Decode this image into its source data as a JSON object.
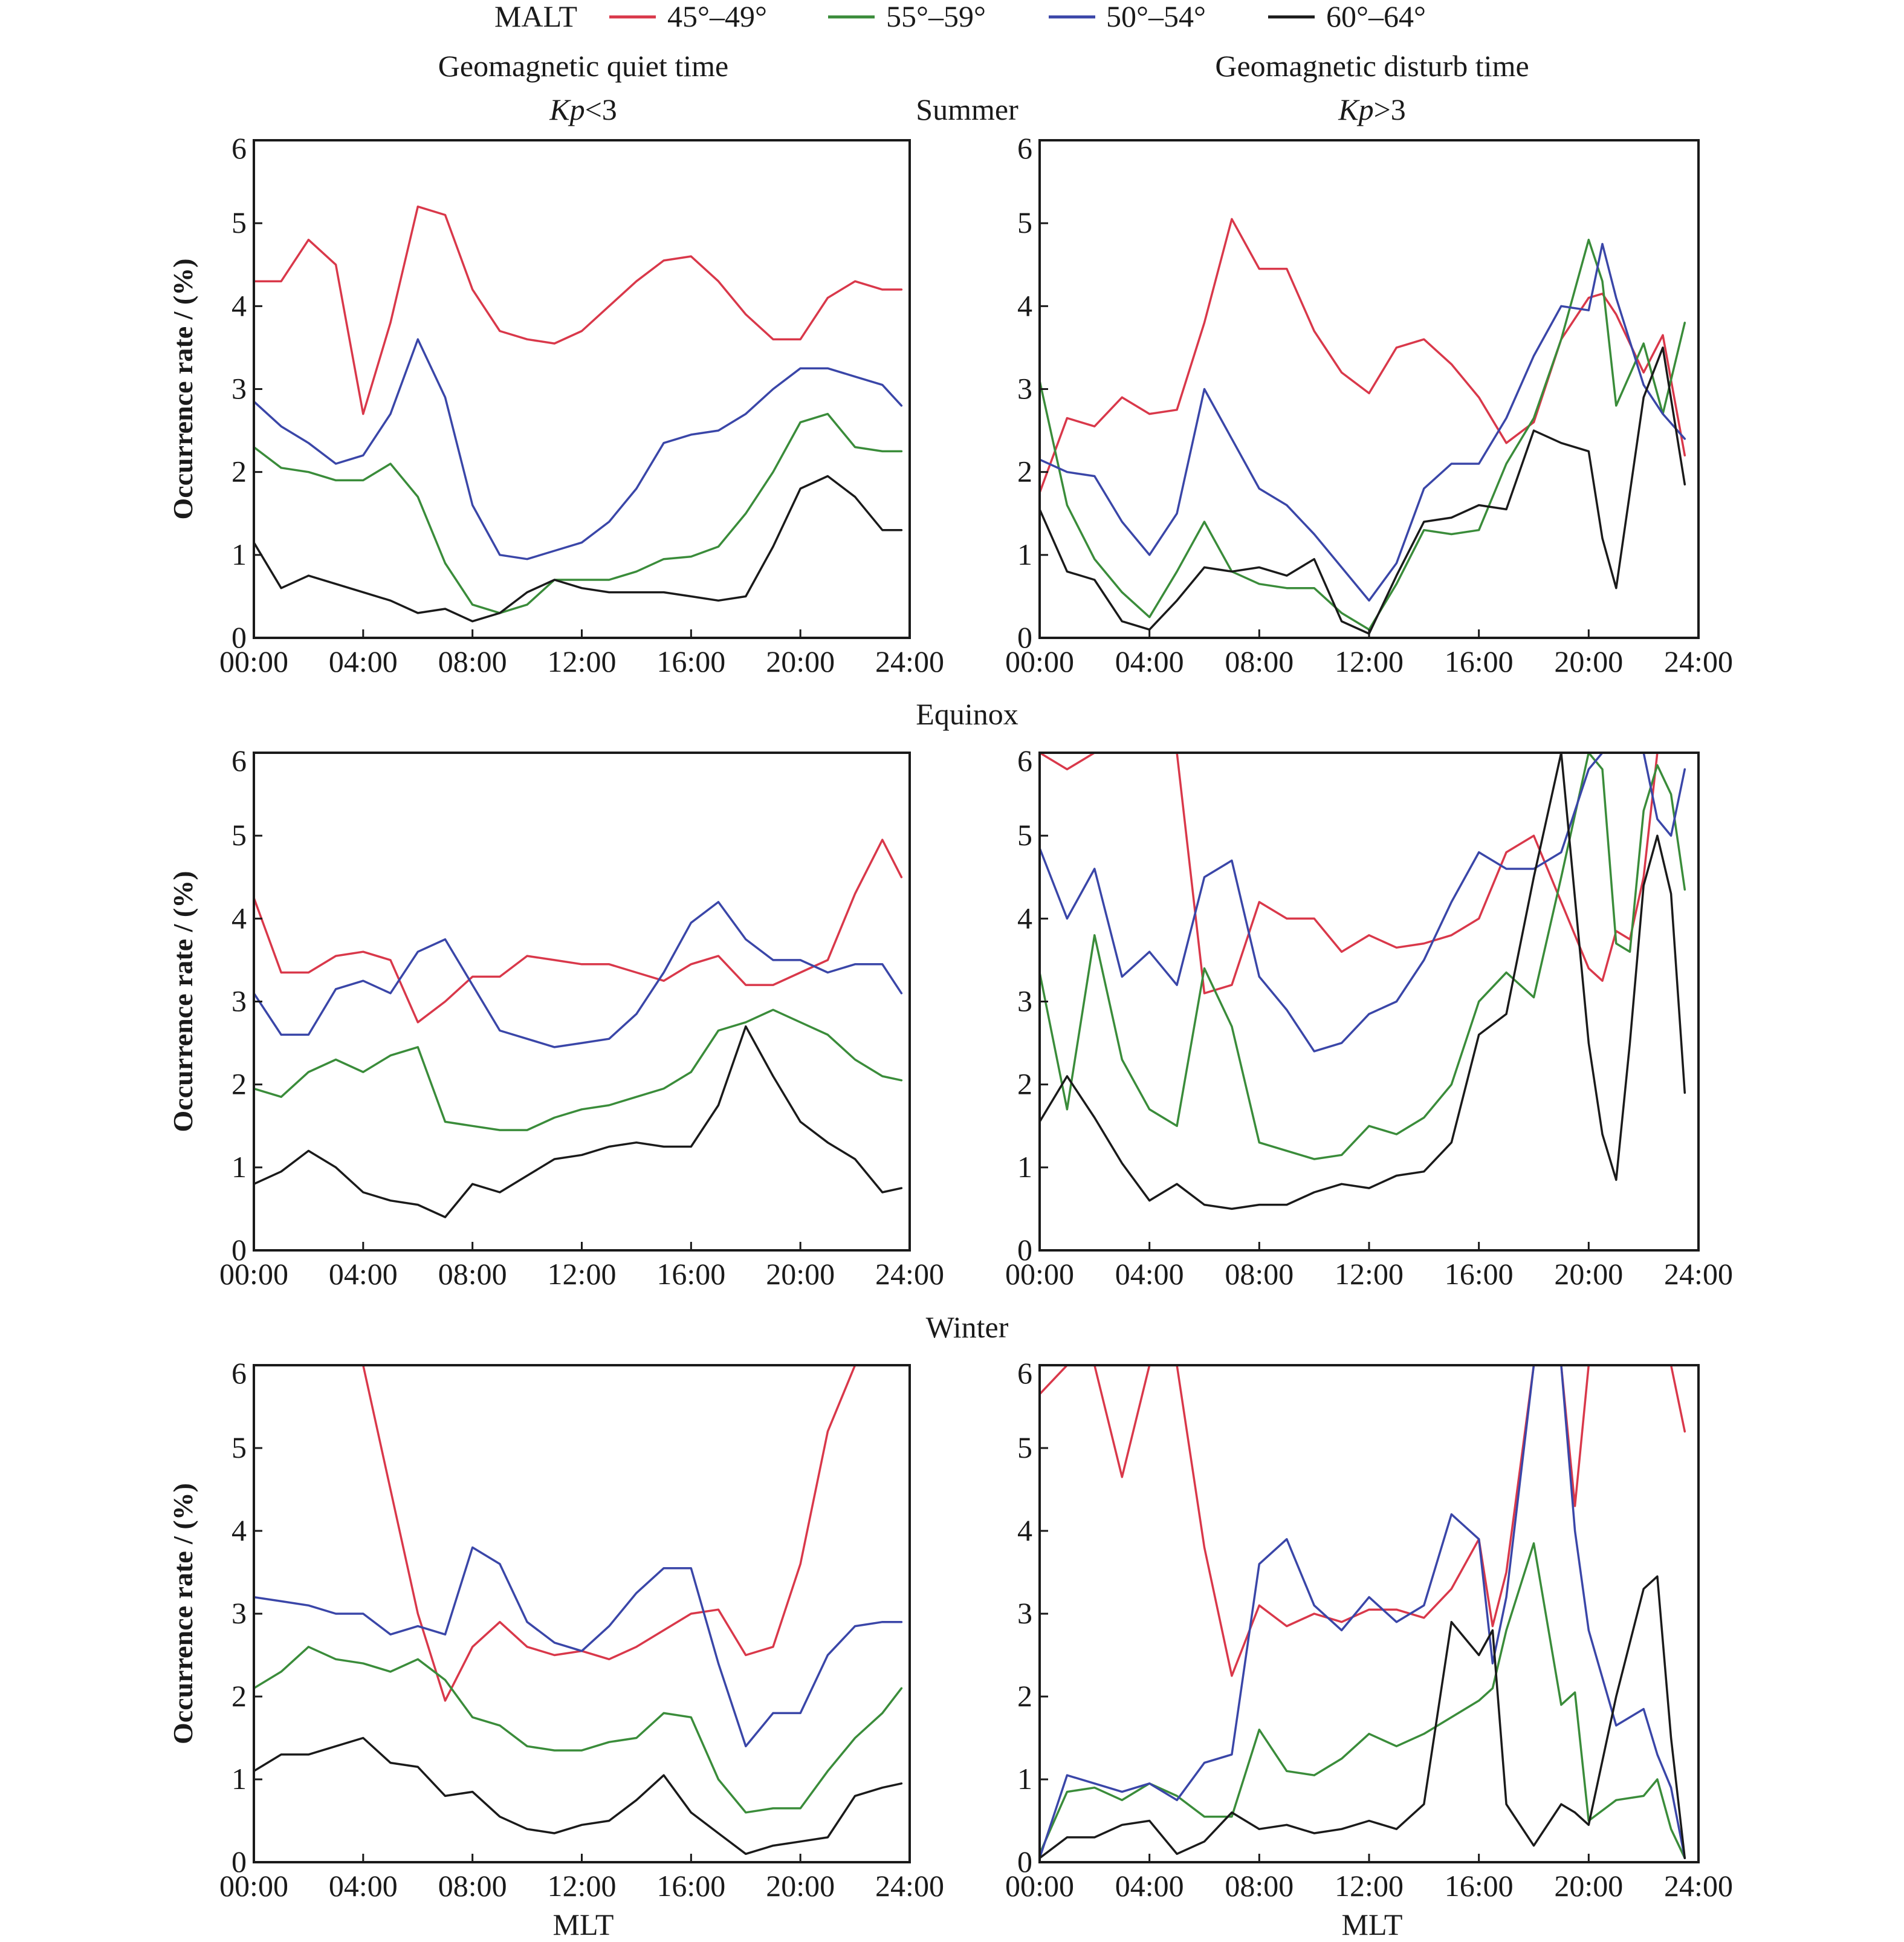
{
  "legend": {
    "title": "MALT",
    "items": [
      {
        "label": "45°–49°",
        "color": "#d9384a"
      },
      {
        "label": "55°–59°",
        "color": "#3a8c3a"
      },
      {
        "label": "50°–54°",
        "color": "#3a46a8"
      },
      {
        "label": "60°–64°",
        "color": "#1a1a1a"
      }
    ]
  },
  "columns": {
    "left": {
      "title": "Geomagnetic quiet time",
      "subtitle_k": "Kp",
      "subtitle_rest": "<3"
    },
    "right": {
      "title": "Geomagnetic disturb time",
      "subtitle_k": "Kp",
      "subtitle_rest": ">3"
    }
  },
  "rows": [
    "Summer",
    "Equinox",
    "Winter"
  ],
  "xlabel": "MLT",
  "ylabel": "Occurrence rate / (%)",
  "chart_data": [
    {
      "type": "line",
      "season": "Summer",
      "condition": "Kp<3",
      "xlabel": "",
      "ylabel": "Occurrence rate / (%)",
      "xlim": [
        0,
        24
      ],
      "ylim": [
        0,
        6
      ],
      "xticks": [
        "00:00",
        "04:00",
        "08:00",
        "12:00",
        "16:00",
        "20:00",
        "24:00"
      ],
      "yticks": [
        "0",
        "1",
        "2",
        "3",
        "4",
        "5",
        "6"
      ],
      "x": [
        0,
        1,
        2,
        3,
        4,
        5,
        6,
        7,
        8,
        9,
        10,
        11,
        12,
        13,
        14,
        15,
        16,
        17,
        18,
        19,
        20,
        21,
        22,
        23,
        23.7
      ],
      "series": [
        {
          "name": "45°–49°",
          "values": [
            4.3,
            4.3,
            4.8,
            4.5,
            2.7,
            3.8,
            5.2,
            5.1,
            4.2,
            3.7,
            3.6,
            3.55,
            3.7,
            4.0,
            4.3,
            4.55,
            4.6,
            4.3,
            3.9,
            3.6,
            3.6,
            4.1,
            4.3,
            4.2,
            4.2
          ]
        },
        {
          "name": "55°–59°",
          "values": [
            2.3,
            2.05,
            2.0,
            1.9,
            1.9,
            2.1,
            1.7,
            0.9,
            0.4,
            0.3,
            0.4,
            0.7,
            0.7,
            0.7,
            0.8,
            0.95,
            0.98,
            1.1,
            1.5,
            2.0,
            2.6,
            2.7,
            2.3,
            2.25,
            2.25
          ]
        },
        {
          "name": "50°–54°",
          "values": [
            2.85,
            2.55,
            2.35,
            2.1,
            2.2,
            2.7,
            3.6,
            2.9,
            1.6,
            1.0,
            0.95,
            1.05,
            1.15,
            1.4,
            1.8,
            2.35,
            2.45,
            2.5,
            2.7,
            3.0,
            3.25,
            3.25,
            3.15,
            3.05,
            2.8
          ]
        },
        {
          "name": "60°–64°",
          "values": [
            1.15,
            0.6,
            0.75,
            0.65,
            0.55,
            0.45,
            0.3,
            0.35,
            0.2,
            0.3,
            0.55,
            0.7,
            0.6,
            0.55,
            0.55,
            0.55,
            0.5,
            0.45,
            0.5,
            1.1,
            1.8,
            1.95,
            1.7,
            1.3,
            1.3
          ]
        }
      ]
    },
    {
      "type": "line",
      "season": "Summer",
      "condition": "Kp>3",
      "xlabel": "",
      "ylabel": "",
      "xlim": [
        0,
        24
      ],
      "ylim": [
        0,
        6
      ],
      "xticks": [
        "00:00",
        "04:00",
        "08:00",
        "12:00",
        "16:00",
        "20:00",
        "24:00"
      ],
      "yticks": [
        "0",
        "1",
        "2",
        "3",
        "4",
        "5",
        "6"
      ],
      "x": [
        0,
        1,
        2,
        3,
        4,
        5,
        6,
        7,
        8,
        9,
        10,
        11,
        12,
        13,
        14,
        15,
        16,
        17,
        18,
        19,
        20,
        20.5,
        21,
        22,
        22.7,
        23.5
      ],
      "series": [
        {
          "name": "45°–49°",
          "values": [
            1.75,
            2.65,
            2.55,
            2.9,
            2.7,
            2.75,
            3.8,
            5.05,
            4.45,
            4.45,
            3.7,
            3.2,
            2.95,
            3.5,
            3.6,
            3.3,
            2.9,
            2.35,
            2.6,
            3.6,
            4.1,
            4.15,
            3.9,
            3.2,
            3.65,
            2.2
          ]
        },
        {
          "name": "55°–59°",
          "values": [
            3.1,
            1.6,
            0.95,
            0.55,
            0.25,
            0.8,
            1.4,
            0.8,
            0.65,
            0.6,
            0.6,
            0.3,
            0.1,
            0.65,
            1.3,
            1.25,
            1.3,
            2.1,
            2.65,
            3.6,
            4.8,
            4.3,
            2.8,
            3.55,
            2.7,
            3.8
          ]
        },
        {
          "name": "50°–54°",
          "values": [
            2.15,
            2.0,
            1.95,
            1.4,
            1.0,
            1.5,
            3.0,
            2.4,
            1.8,
            1.6,
            1.25,
            0.85,
            0.45,
            0.9,
            1.8,
            2.1,
            2.1,
            2.65,
            3.4,
            4.0,
            3.95,
            4.75,
            4.1,
            3.05,
            2.7,
            2.4
          ]
        },
        {
          "name": "60°–64°",
          "values": [
            1.55,
            0.8,
            0.7,
            0.2,
            0.1,
            0.45,
            0.85,
            0.8,
            0.85,
            0.75,
            0.95,
            0.2,
            0.05,
            0.75,
            1.4,
            1.45,
            1.6,
            1.55,
            2.5,
            2.35,
            2.25,
            1.2,
            0.6,
            2.9,
            3.5,
            1.85
          ]
        }
      ]
    },
    {
      "type": "line",
      "season": "Equinox",
      "condition": "Kp<3",
      "xlabel": "",
      "ylabel": "Occurrence rate / (%)",
      "xlim": [
        0,
        24
      ],
      "ylim": [
        0,
        6
      ],
      "xticks": [
        "00:00",
        "04:00",
        "08:00",
        "12:00",
        "16:00",
        "20:00",
        "24:00"
      ],
      "yticks": [
        "0",
        "1",
        "2",
        "3",
        "4",
        "5",
        "6"
      ],
      "x": [
        0,
        1,
        2,
        3,
        4,
        5,
        6,
        7,
        8,
        9,
        10,
        11,
        12,
        13,
        14,
        15,
        16,
        17,
        18,
        19,
        20,
        21,
        22,
        23,
        23.7
      ],
      "series": [
        {
          "name": "45°–49°",
          "values": [
            4.25,
            3.35,
            3.35,
            3.55,
            3.6,
            3.5,
            2.75,
            3.0,
            3.3,
            3.3,
            3.55,
            3.5,
            3.45,
            3.45,
            3.35,
            3.25,
            3.45,
            3.55,
            3.2,
            3.2,
            3.35,
            3.5,
            4.3,
            4.95,
            4.5
          ]
        },
        {
          "name": "55°–59°",
          "values": [
            1.95,
            1.85,
            2.15,
            2.3,
            2.15,
            2.35,
            2.45,
            1.55,
            1.5,
            1.45,
            1.45,
            1.6,
            1.7,
            1.75,
            1.85,
            1.95,
            2.15,
            2.65,
            2.75,
            2.9,
            2.75,
            2.6,
            2.3,
            2.1,
            2.05
          ]
        },
        {
          "name": "50°–54°",
          "values": [
            3.1,
            2.6,
            2.6,
            3.15,
            3.25,
            3.1,
            3.6,
            3.75,
            3.2,
            2.65,
            2.55,
            2.45,
            2.5,
            2.55,
            2.85,
            3.35,
            3.95,
            4.2,
            3.75,
            3.5,
            3.5,
            3.35,
            3.45,
            3.45,
            3.1
          ]
        },
        {
          "name": "60°–64°",
          "values": [
            0.8,
            0.95,
            1.2,
            1.0,
            0.7,
            0.6,
            0.55,
            0.4,
            0.8,
            0.7,
            0.9,
            1.1,
            1.15,
            1.25,
            1.3,
            1.25,
            1.25,
            1.75,
            2.7,
            2.1,
            1.55,
            1.3,
            1.1,
            0.7,
            0.75
          ]
        }
      ]
    },
    {
      "type": "line",
      "season": "Equinox",
      "condition": "Kp>3",
      "xlabel": "",
      "ylabel": "",
      "xlim": [
        0,
        24
      ],
      "ylim": [
        0,
        6
      ],
      "xticks": [
        "00:00",
        "04:00",
        "08:00",
        "12:00",
        "16:00",
        "20:00",
        "24:00"
      ],
      "yticks": [
        "0",
        "1",
        "2",
        "3",
        "4",
        "5",
        "6"
      ],
      "x": [
        0,
        1,
        2,
        3,
        4,
        5,
        6,
        7,
        8,
        9,
        10,
        11,
        12,
        13,
        14,
        15,
        16,
        17,
        18,
        19,
        20,
        20.5,
        21,
        21.5,
        22,
        22.5,
        23,
        23.5
      ],
      "series": [
        {
          "name": "45°–49°",
          "values": [
            6,
            5.8,
            6,
            6,
            6,
            6,
            3.1,
            3.2,
            4.2,
            4.0,
            4.0,
            3.6,
            3.8,
            3.65,
            3.7,
            3.8,
            4.0,
            4.8,
            5.0,
            4.2,
            3.4,
            3.25,
            3.85,
            3.75,
            4.5,
            6,
            6,
            6
          ]
        },
        {
          "name": "55°–59°",
          "values": [
            3.35,
            1.7,
            3.8,
            2.3,
            1.7,
            1.5,
            3.4,
            2.7,
            1.3,
            1.2,
            1.1,
            1.15,
            1.5,
            1.4,
            1.6,
            2.0,
            3.0,
            3.35,
            3.05,
            4.5,
            6,
            5.8,
            3.7,
            3.6,
            5.3,
            5.85,
            5.5,
            4.35
          ]
        },
        {
          "name": "50°–54°",
          "values": [
            4.85,
            4.0,
            4.6,
            3.3,
            3.6,
            3.2,
            4.5,
            4.7,
            3.3,
            2.9,
            2.4,
            2.5,
            2.85,
            3.0,
            3.5,
            4.2,
            4.8,
            4.6,
            4.6,
            4.8,
            5.8,
            6,
            6,
            6,
            6,
            5.2,
            5.0,
            5.8
          ]
        },
        {
          "name": "60°–64°",
          "values": [
            1.55,
            2.1,
            1.6,
            1.05,
            0.6,
            0.8,
            0.55,
            0.5,
            0.55,
            0.55,
            0.7,
            0.8,
            0.75,
            0.9,
            0.95,
            1.3,
            2.6,
            2.85,
            4.5,
            6,
            2.5,
            1.4,
            0.85,
            2.5,
            4.4,
            5.0,
            4.3,
            1.9
          ]
        }
      ]
    },
    {
      "type": "line",
      "season": "Winter",
      "condition": "Kp<3",
      "xlabel": "MLT",
      "ylabel": "Occurrence rate / (%)",
      "xlim": [
        0,
        24
      ],
      "ylim": [
        0,
        6
      ],
      "xticks": [
        "00:00",
        "04:00",
        "08:00",
        "12:00",
        "16:00",
        "20:00",
        "24:00"
      ],
      "yticks": [
        "0",
        "1",
        "2",
        "3",
        "4",
        "5",
        "6"
      ],
      "x": [
        0,
        1,
        2,
        3,
        4,
        5,
        6,
        7,
        8,
        9,
        10,
        11,
        12,
        13,
        14,
        15,
        16,
        17,
        18,
        19,
        20,
        21,
        22,
        23,
        23.7
      ],
      "series": [
        {
          "name": "45°–49°",
          "values": [
            6,
            6,
            6,
            6,
            6,
            4.5,
            3.0,
            1.95,
            2.6,
            2.9,
            2.6,
            2.5,
            2.55,
            2.45,
            2.6,
            2.8,
            3.0,
            3.05,
            2.5,
            2.6,
            3.6,
            5.2,
            6,
            6,
            6
          ]
        },
        {
          "name": "55°–59°",
          "values": [
            2.1,
            2.3,
            2.6,
            2.45,
            2.4,
            2.3,
            2.45,
            2.2,
            1.75,
            1.65,
            1.4,
            1.35,
            1.35,
            1.45,
            1.5,
            1.8,
            1.75,
            1.0,
            0.6,
            0.65,
            0.65,
            1.1,
            1.5,
            1.8,
            2.1
          ]
        },
        {
          "name": "50°–54°",
          "values": [
            3.2,
            3.15,
            3.1,
            3.0,
            3.0,
            2.75,
            2.85,
            2.75,
            3.8,
            3.6,
            2.9,
            2.65,
            2.55,
            2.85,
            3.25,
            3.55,
            3.55,
            2.4,
            1.4,
            1.8,
            1.8,
            2.5,
            2.85,
            2.9,
            2.9
          ]
        },
        {
          "name": "60°–64°",
          "values": [
            1.1,
            1.3,
            1.3,
            1.4,
            1.5,
            1.2,
            1.15,
            0.8,
            0.85,
            0.55,
            0.4,
            0.35,
            0.45,
            0.5,
            0.75,
            1.05,
            0.6,
            0.35,
            0.1,
            0.2,
            0.25,
            0.3,
            0.8,
            0.9,
            0.95
          ]
        }
      ]
    },
    {
      "type": "line",
      "season": "Winter",
      "condition": "Kp>3",
      "xlabel": "MLT",
      "ylabel": "",
      "xlim": [
        0,
        24
      ],
      "ylim": [
        0,
        6
      ],
      "xticks": [
        "00:00",
        "04:00",
        "08:00",
        "12:00",
        "16:00",
        "20:00",
        "24:00"
      ],
      "yticks": [
        "0",
        "1",
        "2",
        "3",
        "4",
        "5",
        "6"
      ],
      "x": [
        0,
        1,
        2,
        3,
        4,
        5,
        6,
        7,
        8,
        9,
        10,
        11,
        12,
        13,
        14,
        15,
        16,
        16.5,
        17,
        18,
        19,
        19.5,
        20,
        21,
        22,
        22.5,
        23,
        23.5
      ],
      "series": [
        {
          "name": "45°–49°",
          "values": [
            5.65,
            6,
            6,
            4.65,
            6,
            6,
            3.8,
            2.25,
            3.1,
            2.85,
            3.0,
            2.9,
            3.05,
            3.05,
            2.95,
            3.3,
            3.9,
            2.85,
            3.5,
            6,
            6,
            4.3,
            6,
            6,
            6,
            6,
            6,
            5.2
          ]
        },
        {
          "name": "55°–59°",
          "values": [
            0.1,
            0.85,
            0.9,
            0.75,
            0.95,
            0.8,
            0.55,
            0.55,
            1.6,
            1.1,
            1.05,
            1.25,
            1.55,
            1.4,
            1.55,
            1.75,
            1.95,
            2.1,
            2.8,
            3.85,
            1.9,
            2.05,
            0.5,
            0.75,
            0.8,
            1.0,
            0.4,
            0.05
          ]
        },
        {
          "name": "50°–54°",
          "values": [
            0.05,
            1.05,
            0.95,
            0.85,
            0.95,
            0.75,
            1.2,
            1.3,
            3.6,
            3.9,
            3.1,
            2.8,
            3.2,
            2.9,
            3.1,
            4.2,
            3.9,
            2.4,
            3.2,
            6,
            6,
            4.0,
            2.8,
            1.65,
            1.85,
            1.3,
            0.9,
            0.05
          ]
        },
        {
          "name": "60°–64°",
          "values": [
            0.05,
            0.3,
            0.3,
            0.45,
            0.5,
            0.1,
            0.25,
            0.6,
            0.4,
            0.45,
            0.35,
            0.4,
            0.5,
            0.4,
            0.7,
            2.9,
            2.5,
            2.8,
            0.7,
            0.2,
            0.7,
            0.6,
            0.45,
            2.0,
            3.3,
            3.45,
            1.5,
            0.05
          ]
        }
      ]
    }
  ]
}
